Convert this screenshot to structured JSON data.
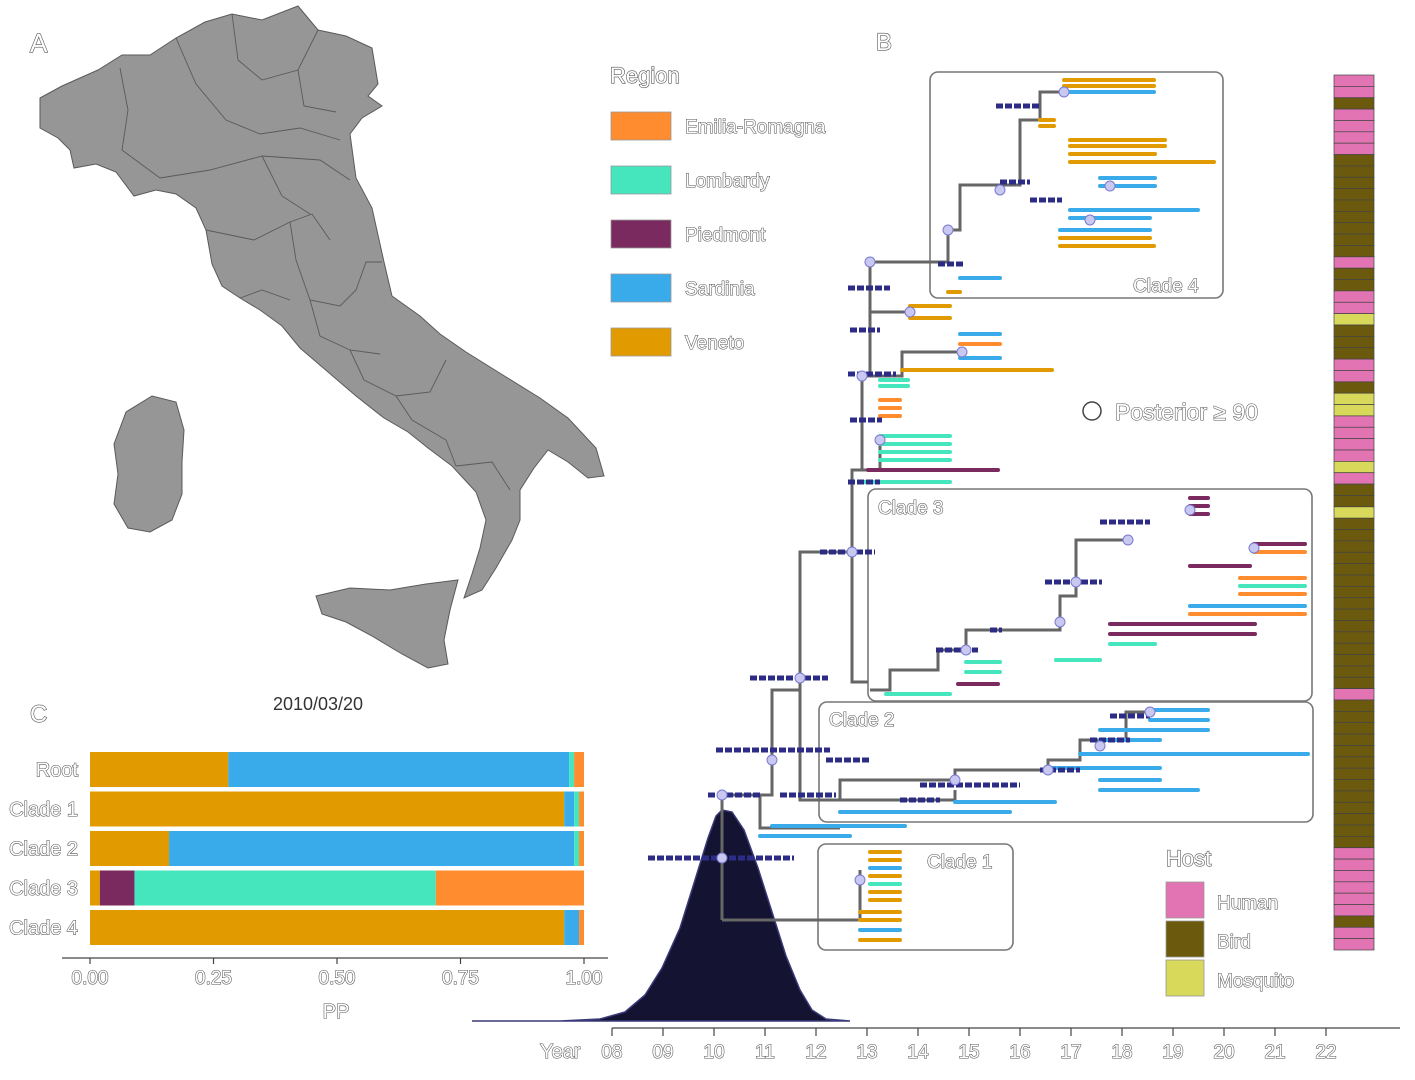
{
  "panels": {
    "a": "A",
    "b": "B",
    "c": "C"
  },
  "map": {
    "date": "2010/03/20"
  },
  "legend_region": {
    "title": "Region",
    "items": [
      {
        "label": "Emilia-Romagna",
        "color": "#FF8C2E"
      },
      {
        "label": "Lombardy",
        "color": "#45E5BE"
      },
      {
        "label": "Piedmont",
        "color": "#7B2A60"
      },
      {
        "label": "Sardinia",
        "color": "#3AABEA"
      },
      {
        "label": "Veneto",
        "color": "#E19B00"
      }
    ]
  },
  "legend_host": {
    "title": "Host",
    "items": [
      {
        "label": "Human",
        "color": "#E274B3"
      },
      {
        "label": "Bird",
        "color": "#6B5A0E"
      },
      {
        "label": "Mosquito",
        "color": "#D8D85A"
      }
    ]
  },
  "posterior_label": "Posterior ≥ 90",
  "clade_labels": [
    "Clade 1",
    "Clade 2",
    "Clade 3",
    "Clade 4"
  ],
  "tree_axis": {
    "label": "Year",
    "ticks": [
      "08",
      "09",
      "10",
      "11",
      "12",
      "13",
      "14",
      "15",
      "16",
      "17",
      "18",
      "19",
      "20",
      "21",
      "22"
    ]
  },
  "host_strip": [
    "Human",
    "Human",
    "Bird",
    "Human",
    "Human",
    "Human",
    "Human",
    "Bird",
    "Bird",
    "Bird",
    "Bird",
    "Bird",
    "Bird",
    "Bird",
    "Bird",
    "Bird",
    "Human",
    "Bird",
    "Bird",
    "Human",
    "Human",
    "Mosquito",
    "Bird",
    "Bird",
    "Bird",
    "Human",
    "Human",
    "Bird",
    "Mosquito",
    "Mosquito",
    "Human",
    "Human",
    "Human",
    "Human",
    "Mosquito",
    "Human",
    "Bird",
    "Bird",
    "Mosquito",
    "Bird",
    "Bird",
    "Bird",
    "Bird",
    "Bird",
    "Bird",
    "Bird",
    "Bird",
    "Bird",
    "Bird",
    "Bird",
    "Bird",
    "Bird",
    "Bird",
    "Bird",
    "Human",
    "Bird",
    "Bird",
    "Bird",
    "Bird",
    "Bird",
    "Bird",
    "Bird",
    "Bird",
    "Bird",
    "Bird",
    "Bird",
    "Bird",
    "Bird",
    "Human",
    "Human",
    "Human",
    "Human",
    "Human",
    "Human",
    "Bird",
    "Human",
    "Human"
  ],
  "chart_data": {
    "type": "bar",
    "orientation": "horizontal",
    "stacked": true,
    "categories": [
      "Root",
      "Clade 1",
      "Clade 2",
      "Clade 3",
      "Clade 4"
    ],
    "series": [
      {
        "name": "Veneto",
        "values": [
          0.28,
          0.96,
          0.16,
          0.02,
          0.96
        ]
      },
      {
        "name": "Piedmont",
        "values": [
          0.0,
          0.0,
          0.0,
          0.07,
          0.0
        ]
      },
      {
        "name": "Sardinia",
        "values": [
          0.69,
          0.02,
          0.82,
          0.0,
          0.03
        ]
      },
      {
        "name": "Lombardy",
        "values": [
          0.01,
          0.01,
          0.01,
          0.61,
          0.0
        ]
      },
      {
        "name": "Emilia-Romagna",
        "values": [
          0.02,
          0.01,
          0.01,
          0.3,
          0.01
        ]
      }
    ],
    "xlabel": "PP",
    "xlim": [
      0,
      1
    ],
    "xticks": [
      "0.00",
      "0.25",
      "0.50",
      "0.75",
      "1.00"
    ],
    "grid": false,
    "legend": "none"
  }
}
